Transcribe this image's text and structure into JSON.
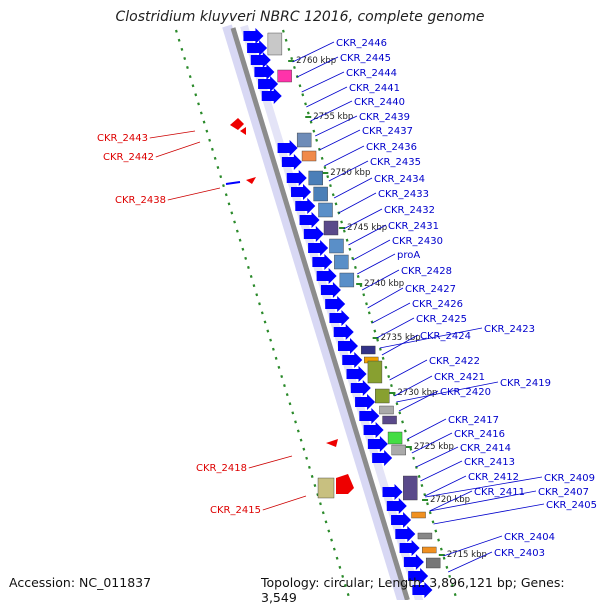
{
  "title": "Clostridium kluyveri NBRC 12016, complete genome",
  "footer": {
    "accession": "Accession: NC_011837",
    "topology": "Topology: circular; Length: 3,896,121 bp; Genes: 3,549"
  },
  "colors": {
    "backbone": "#8c8c8c",
    "forward_strand_label": "#0000cc",
    "reverse_strand_label": "#dd0000",
    "gene_arrow_forward": "#0000ff",
    "gene_arrow_reverse": "#ee0000",
    "tick_dots": "#2a8a2a"
  },
  "scale_labels": [
    "2760 kbp",
    "2755 kbp",
    "2750 kbp",
    "2745 kbp",
    "2740 kbp",
    "2735 kbp",
    "2730 kbp",
    "2725 kbp",
    "2720 kbp",
    "2715 kbp"
  ],
  "forward_labels": [
    "CKR_2446",
    "CKR_2445",
    "CKR_2444",
    "CKR_2441",
    "CKR_2440",
    "CKR_2439",
    "CKR_2437",
    "CKR_2436",
    "CKR_2435",
    "CKR_2434",
    "CKR_2433",
    "CKR_2432",
    "CKR_2431",
    "CKR_2430",
    "proA",
    "CKR_2428",
    "CKR_2427",
    "CKR_2426",
    "CKR_2425",
    "CKR_2424",
    "CKR_2423",
    "CKR_2422",
    "CKR_2421",
    "CKR_2420",
    "CKR_2419",
    "CKR_2417",
    "CKR_2416",
    "CKR_2414",
    "CKR_2413",
    "CKR_2412",
    "CKR_2411",
    "CKR_2409",
    "CKR_2407",
    "CKR_2405",
    "CKR_2404",
    "CKR_2403"
  ],
  "reverse_labels": [
    "CKR_2443",
    "CKR_2442",
    "CKR_2438",
    "CKR_2418",
    "CKR_2415"
  ]
}
